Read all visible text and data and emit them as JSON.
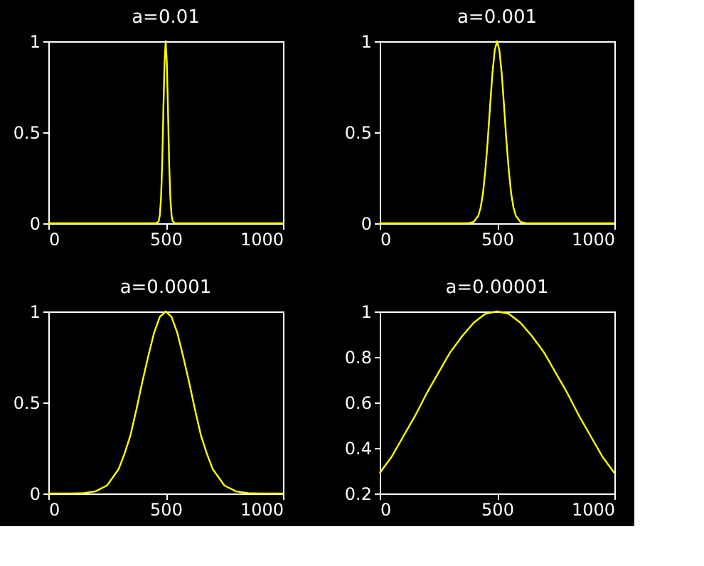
{
  "chart_data": [
    {
      "type": "line",
      "title": "a=0.01",
      "x": [
        0,
        460,
        470,
        475,
        480,
        485,
        490,
        495,
        500,
        505,
        510,
        515,
        520,
        525,
        530,
        540,
        1000
      ],
      "series": [
        {
          "color": "#ffff00",
          "values": [
            0,
            0,
            0.011,
            0.044,
            0.135,
            0.32,
            0.61,
            0.88,
            1,
            0.88,
            0.61,
            0.32,
            0.135,
            0.044,
            0.011,
            0,
            0
          ]
        }
      ],
      "xlim": [
        0,
        1000
      ],
      "ylim": [
        0,
        1
      ],
      "xticks": [
        0,
        500,
        1000
      ],
      "yticks": [
        0,
        0.5,
        1
      ],
      "grid": false
    },
    {
      "type": "line",
      "title": "a=0.001",
      "x": [
        0,
        350,
        380,
        400,
        420,
        430,
        440,
        450,
        460,
        470,
        480,
        490,
        500,
        510,
        520,
        530,
        540,
        550,
        560,
        570,
        580,
        600,
        620,
        650,
        1000
      ],
      "series": [
        {
          "color": "#ffff00",
          "values": [
            0,
            0,
            0.001,
            0.007,
            0.041,
            0.086,
            0.165,
            0.29,
            0.45,
            0.64,
            0.82,
            0.95,
            1,
            0.95,
            0.82,
            0.64,
            0.45,
            0.29,
            0.165,
            0.086,
            0.041,
            0.007,
            0.001,
            0,
            0
          ]
        }
      ],
      "xlim": [
        0,
        1000
      ],
      "ylim": [
        0,
        1
      ],
      "xticks": [
        0,
        500,
        1000
      ],
      "yticks": [
        0,
        0.5,
        1
      ],
      "grid": false
    },
    {
      "type": "line",
      "title": "a=0.0001",
      "x": [
        0,
        100,
        150,
        200,
        250,
        300,
        325,
        350,
        375,
        400,
        425,
        450,
        475,
        500,
        525,
        550,
        575,
        600,
        625,
        650,
        675,
        700,
        750,
        800,
        850,
        900,
        1000
      ],
      "series": [
        {
          "color": "#ffff00",
          "values": [
            0,
            0,
            0.002,
            0.011,
            0.044,
            0.135,
            0.22,
            0.32,
            0.46,
            0.61,
            0.75,
            0.88,
            0.97,
            1,
            0.97,
            0.88,
            0.75,
            0.61,
            0.46,
            0.32,
            0.22,
            0.135,
            0.044,
            0.011,
            0.002,
            0,
            0
          ]
        }
      ],
      "xlim": [
        0,
        1000
      ],
      "ylim": [
        0,
        1
      ],
      "xticks": [
        0,
        500,
        1000
      ],
      "yticks": [
        0,
        0.5,
        1
      ],
      "grid": false
    },
    {
      "type": "line",
      "title": "a=0.00001",
      "x": [
        0,
        50,
        100,
        150,
        200,
        250,
        300,
        350,
        400,
        450,
        500,
        550,
        600,
        650,
        700,
        750,
        800,
        850,
        900,
        950,
        1000
      ],
      "series": [
        {
          "color": "#ffff00",
          "values": [
            0.29,
            0.36,
            0.45,
            0.54,
            0.64,
            0.73,
            0.82,
            0.89,
            0.95,
            0.99,
            1,
            0.99,
            0.95,
            0.89,
            0.82,
            0.73,
            0.64,
            0.54,
            0.45,
            0.36,
            0.29
          ]
        }
      ],
      "xlim": [
        0,
        1000
      ],
      "ylim": [
        0.2,
        1
      ],
      "xticks": [
        0,
        500,
        1000
      ],
      "yticks": [
        0.2,
        0.4,
        0.6,
        0.8,
        1
      ],
      "grid": false
    }
  ]
}
